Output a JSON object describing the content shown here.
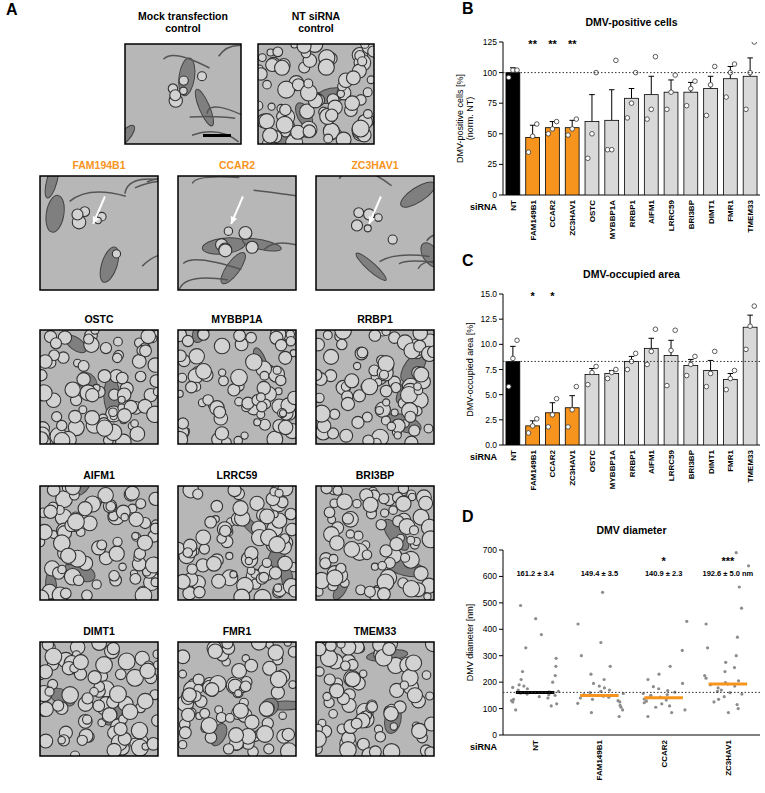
{
  "panel_a": {
    "panel": "A",
    "color": "#f7941d",
    "controls": [
      {
        "label": [
          "Mock transfection",
          "control"
        ]
      },
      {
        "label": [
          "NT siRNA",
          "control"
        ]
      }
    ],
    "knockdowns": [
      {
        "label": "FAM194B1",
        "highlight": true
      },
      {
        "label": "CCAR2",
        "highlight": true
      },
      {
        "label": "ZC3HAV1",
        "highlight": true
      },
      {
        "label": "OSTC",
        "highlight": false
      },
      {
        "label": "MYBBP1A",
        "highlight": false
      },
      {
        "label": "RRBP1",
        "highlight": false
      },
      {
        "label": "AIFM1",
        "highlight": false
      },
      {
        "label": "LRRC59",
        "highlight": false
      },
      {
        "label": "BRI3BP",
        "highlight": false
      },
      {
        "label": "DIMT1",
        "highlight": false
      },
      {
        "label": "FMR1",
        "highlight": false
      },
      {
        "label": "TMEM33",
        "highlight": false
      }
    ]
  },
  "chart_data": [
    {
      "panel": "B",
      "type": "bar",
      "title": "DMV-positive cells",
      "ylabel": [
        "DMV-positive cells [%]",
        "(norm. NT)"
      ],
      "xlabel": "siRNA",
      "categories": [
        "NT",
        "FAM149B1",
        "CCAR2",
        "ZC3HAV1",
        "OSTC",
        "MYBBP1A",
        "RRBP1",
        "AIFM1",
        "LRRC59",
        "BRI3BP",
        "DIMT1",
        "FMR1",
        "TMEM33"
      ],
      "values": [
        100,
        47,
        55,
        55,
        60,
        61,
        79,
        82,
        84,
        84,
        87,
        95,
        97
      ],
      "errors": [
        4,
        10,
        5,
        6,
        22,
        25,
        8,
        15,
        10,
        8,
        10,
        10,
        15
      ],
      "points": [
        [
          96,
          102,
          102
        ],
        [
          35,
          48,
          58
        ],
        [
          50,
          54,
          60
        ],
        [
          49,
          54,
          62
        ],
        [
          30,
          50,
          100
        ],
        [
          37,
          37,
          110
        ],
        [
          63,
          75,
          100
        ],
        [
          62,
          70,
          113
        ],
        [
          70,
          84,
          98
        ],
        [
          73,
          87,
          93
        ],
        [
          65,
          90,
          105
        ],
        [
          80,
          100,
          107
        ],
        [
          70,
          100,
          125
        ]
      ],
      "significance": [
        null,
        "**",
        "**",
        "**",
        null,
        null,
        null,
        null,
        null,
        null,
        null,
        null,
        null
      ],
      "reference_line": 100,
      "colors": [
        "#000000",
        "#f7941d",
        "#f7941d",
        "#f7941d",
        "#d9d9d9",
        "#d9d9d9",
        "#d9d9d9",
        "#d9d9d9",
        "#d9d9d9",
        "#d9d9d9",
        "#d9d9d9",
        "#d9d9d9",
        "#d9d9d9"
      ],
      "ylim": [
        0,
        125
      ],
      "yticks": [
        0,
        25,
        50,
        75,
        100,
        125
      ]
    },
    {
      "panel": "C",
      "type": "bar",
      "title": "DMV-occupied area",
      "ylabel": [
        "DMV-occupied area [%]"
      ],
      "xlabel": "siRNA",
      "categories": [
        "NT",
        "FAM149B1",
        "CCAR2",
        "ZC3HAV1",
        "OSTC",
        "MYBBP1A",
        "RRBP1",
        "AIFM1",
        "LRRC59",
        "BRI3BP",
        "DIMT1",
        "FMR1",
        "TMEM33"
      ],
      "values": [
        8.3,
        1.9,
        3.2,
        3.7,
        7.0,
        7.1,
        8.3,
        9.6,
        8.9,
        7.9,
        7.4,
        6.5,
        11.7
      ],
      "errors": [
        1.5,
        0.5,
        1.0,
        1.2,
        0.6,
        0.3,
        0.5,
        1.0,
        1.5,
        0.6,
        1.0,
        0.6,
        1.2
      ],
      "points": [
        [
          5.8,
          8.6,
          10.4
        ],
        [
          1.2,
          1.9,
          2.6
        ],
        [
          1.8,
          3.0,
          4.6
        ],
        [
          1.8,
          3.5,
          5.8
        ],
        [
          6.0,
          7.2,
          7.8
        ],
        [
          6.6,
          7.2,
          7.5
        ],
        [
          7.5,
          8.3,
          9.1
        ],
        [
          8.0,
          9.3,
          11.5
        ],
        [
          5.9,
          9.4,
          11.4
        ],
        [
          6.9,
          8.0,
          8.8
        ],
        [
          5.8,
          7.1,
          9.3
        ],
        [
          5.5,
          6.6,
          7.4
        ],
        [
          9.5,
          11.8,
          13.8
        ]
      ],
      "significance": [
        null,
        "*",
        "*",
        null,
        null,
        null,
        null,
        null,
        null,
        null,
        null,
        null,
        null
      ],
      "reference_line": 8.3,
      "colors": [
        "#000000",
        "#f7941d",
        "#f7941d",
        "#f7941d",
        "#d9d9d9",
        "#d9d9d9",
        "#d9d9d9",
        "#d9d9d9",
        "#d9d9d9",
        "#d9d9d9",
        "#d9d9d9",
        "#d9d9d9",
        "#d9d9d9"
      ],
      "ylim": [
        0,
        15
      ],
      "yticks": [
        {
          "value": 0,
          "label": "0.0"
        },
        2.5,
        {
          "value": 5,
          "label": "5.0"
        },
        7.5,
        {
          "value": 10,
          "label": "10.0"
        },
        12.5,
        {
          "value": 15,
          "label": "15.0"
        }
      ]
    },
    {
      "panel": "D",
      "type": "strip",
      "title": "DMV diameter",
      "ylabel": [
        "DMV diameter [nm]"
      ],
      "xlabel": "siRNA",
      "categories": [
        "NT",
        "FAM149B1",
        "CCAR2",
        "ZC3HAV1"
      ],
      "values": [
        161.2,
        149.4,
        140.9,
        192.6
      ],
      "errors": [
        3.4,
        3.5,
        2.3,
        5.0
      ],
      "value_labels": [
        "161.2 ± 3.4",
        "149.4 ± 3.5",
        "140.9 ± 2.3",
        "192.6 ± 5.0 nm"
      ],
      "points": [
        [
          95,
          110,
          118,
          125,
          130,
          135,
          140,
          145,
          150,
          152,
          155,
          158,
          160,
          163,
          165,
          170,
          175,
          180,
          185,
          190,
          200,
          210,
          225,
          240,
          260,
          290,
          330,
          380,
          440,
          490
        ],
        [
          70,
          85,
          95,
          105,
          112,
          120,
          125,
          130,
          135,
          140,
          143,
          147,
          150,
          153,
          157,
          160,
          165,
          170,
          178,
          185,
          195,
          210,
          230,
          260,
          300,
          350,
          420,
          540
        ],
        [
          70,
          85,
          95,
          105,
          110,
          118,
          122,
          128,
          132,
          136,
          140,
          143,
          146,
          150,
          153,
          157,
          162,
          168,
          175,
          183,
          195,
          210,
          230,
          260,
          320,
          430
        ],
        [
          85,
          100,
          115,
          125,
          135,
          145,
          155,
          160,
          165,
          170,
          178,
          185,
          190,
          198,
          205,
          215,
          225,
          240,
          255,
          275,
          300,
          330,
          370,
          420,
          480,
          560,
          640,
          690
        ]
      ],
      "significance": [
        null,
        null,
        "*",
        "***"
      ],
      "reference_line": 161.2,
      "color": "#8c8c8c",
      "colors": [
        "#000000",
        "#f7941d",
        "#f7941d",
        "#f7941d"
      ],
      "ylim": [
        0,
        700
      ],
      "yticks": [
        0,
        100,
        200,
        300,
        400,
        500,
        600,
        700
      ]
    }
  ]
}
